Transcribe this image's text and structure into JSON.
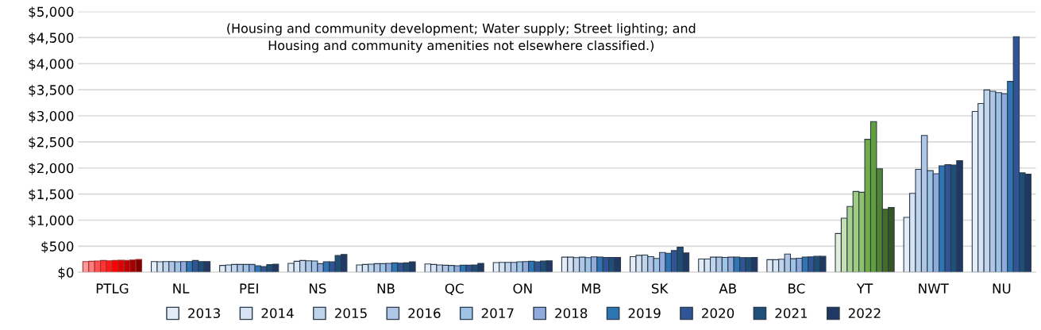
{
  "chart_data": {
    "type": "bar",
    "categories": [
      "PTLG",
      "NL",
      "PEI",
      "NS",
      "NB",
      "QC",
      "ON",
      "MB",
      "SK",
      "AB",
      "BC",
      "YT",
      "NWT",
      "NU"
    ],
    "annotations": [
      "(Housing and community development; Water supply; Street lighting; and\nHousing and community amenities not elsewhere classified.)"
    ],
    "ylim": [
      0,
      5000
    ],
    "yticks": [
      {
        "value": 0,
        "label": "$0"
      },
      {
        "value": 500,
        "label": "$500"
      },
      {
        "value": 1000,
        "label": "$1,000"
      },
      {
        "value": 1500,
        "label": "$1,500"
      },
      {
        "value": 2000,
        "label": "$2,000"
      },
      {
        "value": 2500,
        "label": "$2,500"
      },
      {
        "value": 3000,
        "label": "$3,000"
      },
      {
        "value": 3500,
        "label": "$3,500"
      },
      {
        "value": 4000,
        "label": "$4,000"
      },
      {
        "value": 4500,
        "label": "$4,500"
      },
      {
        "value": 5000,
        "label": "$5,000"
      }
    ],
    "grid": "y",
    "legend": "bottom",
    "marker": "square",
    "series": [
      {
        "name": "2013",
        "color": "#e3ecf7",
        "colors": [
          "#ff9999",
          "#e3ecf7",
          "#e3ecf7",
          "#e3ecf7",
          "#e3ecf7",
          "#e3ecf7",
          "#e3ecf7",
          "#e3ecf7",
          "#e3ecf7",
          "#e3ecf7",
          "#e3ecf7",
          "#e2efda",
          "#e3ecf7",
          "#e3ecf7"
        ],
        "values": [
          205,
          205,
          130,
          170,
          140,
          160,
          185,
          290,
          300,
          255,
          240,
          743,
          1052,
          3084
        ]
      },
      {
        "name": "2014",
        "color": "#d6e3f3",
        "colors": [
          "#ff7c80",
          "#d6e3f3",
          "#d6e3f3",
          "#d6e3f3",
          "#d6e3f3",
          "#d6e3f3",
          "#d6e3f3",
          "#d6e3f3",
          "#d6e3f3",
          "#d6e3f3",
          "#d6e3f3",
          "#c6e0b4",
          "#d6e3f3",
          "#d6e3f3"
        ],
        "values": [
          210,
          200,
          140,
          210,
          150,
          150,
          190,
          290,
          325,
          255,
          240,
          1037,
          1513,
          3236
        ]
      },
      {
        "name": "2015",
        "color": "#c0d5ec",
        "colors": [
          "#ff5050",
          "#c0d5ec",
          "#c0d5ec",
          "#c0d5ec",
          "#c0d5ec",
          "#c0d5ec",
          "#c0d5ec",
          "#c0d5ec",
          "#c0d5ec",
          "#c0d5ec",
          "#c0d5ec",
          "#a9d18e",
          "#c0d5ec",
          "#c0d5ec"
        ],
        "values": [
          215,
          205,
          150,
          225,
          155,
          140,
          190,
          280,
          330,
          290,
          250,
          1262,
          1974,
          3497
        ]
      },
      {
        "name": "2016",
        "color": "#b0c6e6",
        "colors": [
          "#ff3333",
          "#b0c6e6",
          "#b0c6e6",
          "#b0c6e6",
          "#b0c6e6",
          "#b0c6e6",
          "#b0c6e6",
          "#b0c6e6",
          "#b0c6e6",
          "#b0c6e6",
          "#b0c6e6",
          "#a0cc80",
          "#b0c6e6",
          "#b0c6e6"
        ],
        "values": [
          225,
          205,
          150,
          220,
          165,
          135,
          190,
          290,
          300,
          290,
          350,
          1550,
          2623,
          3471
        ]
      },
      {
        "name": "2017",
        "color": "#9dc3e6",
        "colors": [
          "#ff1a1a",
          "#9dc3e6",
          "#9dc3e6",
          "#9dc3e6",
          "#9dc3e6",
          "#9dc3e6",
          "#9dc3e6",
          "#9dc3e6",
          "#9dc3e6",
          "#9dc3e6",
          "#9dc3e6",
          "#8fc16f",
          "#9dc3e6",
          "#9dc3e6"
        ],
        "values": [
          220,
          200,
          150,
          215,
          165,
          130,
          200,
          280,
          265,
          285,
          260,
          1534,
          1948,
          3445
        ]
      },
      {
        "name": "2018",
        "color": "#8faadc",
        "colors": [
          "#ff0000",
          "#8faadc",
          "#8faadc",
          "#8faadc",
          "#8faadc",
          "#8faadc",
          "#8faadc",
          "#8faadc",
          "#8faadc",
          "#8faadc",
          "#8faadc",
          "#70ad47",
          "#8faadc",
          "#8faadc"
        ],
        "values": [
          225,
          205,
          150,
          165,
          170,
          125,
          205,
          295,
          380,
          290,
          270,
          2550,
          1890,
          3424
        ]
      },
      {
        "name": "2019",
        "color": "#2e75b6",
        "colors": [
          "#e00000",
          "#2e75b6",
          "#2e75b6",
          "#2e75b6",
          "#2e75b6",
          "#2e75b6",
          "#2e75b6",
          "#2e75b6",
          "#2e75b6",
          "#2e75b6",
          "#2e75b6",
          "#5fa03a",
          "#2e75b6",
          "#2e75b6"
        ],
        "values": [
          230,
          205,
          125,
          200,
          180,
          135,
          210,
          290,
          365,
          290,
          290,
          2890,
          2042,
          3660
        ]
      },
      {
        "name": "2020",
        "color": "#2f5597",
        "colors": [
          "#c00000",
          "#2f5597",
          "#2f5597",
          "#2f5597",
          "#2f5597",
          "#2f5597",
          "#2f5597",
          "#2f5597",
          "#2f5597",
          "#2f5597",
          "#2f5597",
          "#548235",
          "#2f5597",
          "#2f5597"
        ],
        "values": [
          225,
          225,
          110,
          200,
          175,
          135,
          200,
          285,
          415,
          280,
          295,
          1984,
          2063,
          4518
        ]
      },
      {
        "name": "2021",
        "color": "#1f4e79",
        "colors": [
          "#a00000",
          "#1f4e79",
          "#1f4e79",
          "#1f4e79",
          "#1f4e79",
          "#1f4e79",
          "#1f4e79",
          "#1f4e79",
          "#1f4e79",
          "#1f4e79",
          "#1f4e79",
          "#436b2a",
          "#1f4e79",
          "#1f4e79"
        ],
        "values": [
          235,
          205,
          145,
          320,
          180,
          140,
          215,
          285,
          480,
          280,
          305,
          1209,
          2058,
          1906
        ]
      },
      {
        "name": "2022",
        "color": "#203864",
        "colors": [
          "#800000",
          "#203864",
          "#203864",
          "#203864",
          "#203864",
          "#203864",
          "#203864",
          "#203864",
          "#203864",
          "#203864",
          "#203864",
          "#375623",
          "#203864",
          "#203864"
        ],
        "values": [
          245,
          205,
          155,
          340,
          200,
          170,
          220,
          285,
          370,
          285,
          305,
          1241,
          2141,
          1880
        ]
      }
    ]
  }
}
